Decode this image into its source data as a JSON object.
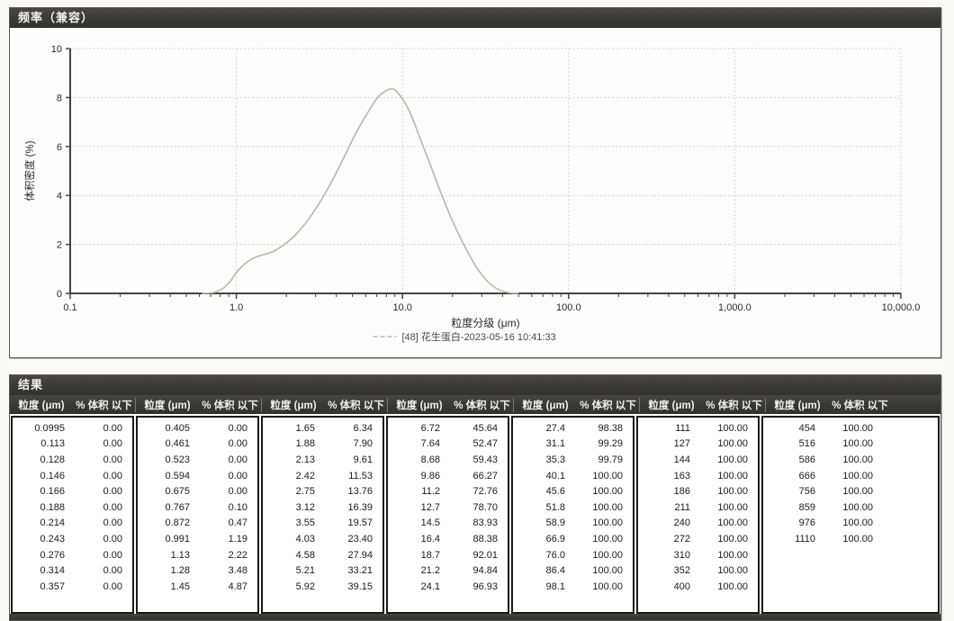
{
  "chart_panel": {
    "title": "频率（兼容）"
  },
  "chart_data": {
    "type": "line",
    "title": "频率（兼容）",
    "xlabel": "粒度分级 (μm)",
    "ylabel": "体积密度 (%)",
    "x_scale": "log",
    "xlim": [
      0.1,
      10000
    ],
    "ylim": [
      0,
      10
    ],
    "x_tick_labels": [
      "0.1",
      "1.0",
      "10.0",
      "100.0",
      "1,000.0",
      "10,000.0"
    ],
    "y_tick_labels": [
      "0",
      "2",
      "4",
      "6",
      "8",
      "10"
    ],
    "grid": true,
    "legend_position": "bottom",
    "series": [
      {
        "name": "[48] 花生蛋白-2023-05-16 10:41:33",
        "color": "#b7bdb3",
        "x": [
          0.62,
          0.72,
          0.82,
          0.92,
          1.0,
          1.1,
          1.25,
          1.45,
          1.65,
          1.9,
          2.2,
          2.6,
          3.1,
          3.7,
          4.4,
          5.2,
          6.2,
          7.2,
          8.5,
          9.5,
          11,
          13,
          15,
          17.5,
          20.5,
          24,
          28,
          33,
          38,
          44,
          50
        ],
        "y": [
          0,
          0.03,
          0.18,
          0.5,
          0.85,
          1.15,
          1.42,
          1.58,
          1.7,
          1.95,
          2.3,
          2.85,
          3.6,
          4.5,
          5.5,
          6.5,
          7.4,
          8.05,
          8.35,
          8.15,
          7.45,
          6.2,
          5.1,
          3.9,
          2.8,
          1.85,
          1.05,
          0.45,
          0.15,
          0.03,
          0
        ]
      }
    ]
  },
  "results_panel": {
    "title": "结果",
    "col_headers": {
      "size": "粒度 (μm)",
      "pct": "% 体积 以下"
    },
    "groups": [
      [
        [
          "0.0995",
          "0.00"
        ],
        [
          "0.113",
          "0.00"
        ],
        [
          "0.128",
          "0.00"
        ],
        [
          "0.146",
          "0.00"
        ],
        [
          "0.166",
          "0.00"
        ],
        [
          "0.188",
          "0.00"
        ],
        [
          "0.214",
          "0.00"
        ],
        [
          "0.243",
          "0.00"
        ],
        [
          "0.276",
          "0.00"
        ],
        [
          "0.314",
          "0.00"
        ],
        [
          "0.357",
          "0.00"
        ]
      ],
      [
        [
          "0.405",
          "0.00"
        ],
        [
          "0.461",
          "0.00"
        ],
        [
          "0.523",
          "0.00"
        ],
        [
          "0.594",
          "0.00"
        ],
        [
          "0.675",
          "0.00"
        ],
        [
          "0.767",
          "0.10"
        ],
        [
          "0.872",
          "0.47"
        ],
        [
          "0.991",
          "1.19"
        ],
        [
          "1.13",
          "2.22"
        ],
        [
          "1.28",
          "3.48"
        ],
        [
          "1.45",
          "4.87"
        ]
      ],
      [
        [
          "1.65",
          "6.34"
        ],
        [
          "1.88",
          "7.90"
        ],
        [
          "2.13",
          "9.61"
        ],
        [
          "2.42",
          "11.53"
        ],
        [
          "2.75",
          "13.76"
        ],
        [
          "3.12",
          "16.39"
        ],
        [
          "3.55",
          "19.57"
        ],
        [
          "4.03",
          "23.40"
        ],
        [
          "4.58",
          "27.94"
        ],
        [
          "5.21",
          "33.21"
        ],
        [
          "5.92",
          "39.15"
        ]
      ],
      [
        [
          "6.72",
          "45.64"
        ],
        [
          "7.64",
          "52.47"
        ],
        [
          "8.68",
          "59.43"
        ],
        [
          "9.86",
          "66.27"
        ],
        [
          "11.2",
          "72.76"
        ],
        [
          "12.7",
          "78.70"
        ],
        [
          "14.5",
          "83.93"
        ],
        [
          "16.4",
          "88.38"
        ],
        [
          "18.7",
          "92.01"
        ],
        [
          "21.2",
          "94.84"
        ],
        [
          "24.1",
          "96.93"
        ]
      ],
      [
        [
          "27.4",
          "98.38"
        ],
        [
          "31.1",
          "99.29"
        ],
        [
          "35.3",
          "99.79"
        ],
        [
          "40.1",
          "100.00"
        ],
        [
          "45.6",
          "100.00"
        ],
        [
          "51.8",
          "100.00"
        ],
        [
          "58.9",
          "100.00"
        ],
        [
          "66.9",
          "100.00"
        ],
        [
          "76.0",
          "100.00"
        ],
        [
          "86.4",
          "100.00"
        ],
        [
          "98.1",
          "100.00"
        ]
      ],
      [
        [
          "111",
          "100.00"
        ],
        [
          "127",
          "100.00"
        ],
        [
          "144",
          "100.00"
        ],
        [
          "163",
          "100.00"
        ],
        [
          "186",
          "100.00"
        ],
        [
          "211",
          "100.00"
        ],
        [
          "240",
          "100.00"
        ],
        [
          "272",
          "100.00"
        ],
        [
          "310",
          "100.00"
        ],
        [
          "352",
          "100.00"
        ],
        [
          "400",
          "100.00"
        ]
      ],
      [
        [
          "454",
          "100.00"
        ],
        [
          "516",
          "100.00"
        ],
        [
          "586",
          "100.00"
        ],
        [
          "666",
          "100.00"
        ],
        [
          "756",
          "100.00"
        ],
        [
          "859",
          "100.00"
        ],
        [
          "976",
          "100.00"
        ],
        [
          "1110",
          "100.00"
        ]
      ]
    ]
  },
  "colors": {
    "panel_bar": "#3b3934",
    "curve": "#b7bdb3",
    "grid": "#c6c6c0",
    "axis": "#45433f",
    "text": "#2a2a28"
  }
}
